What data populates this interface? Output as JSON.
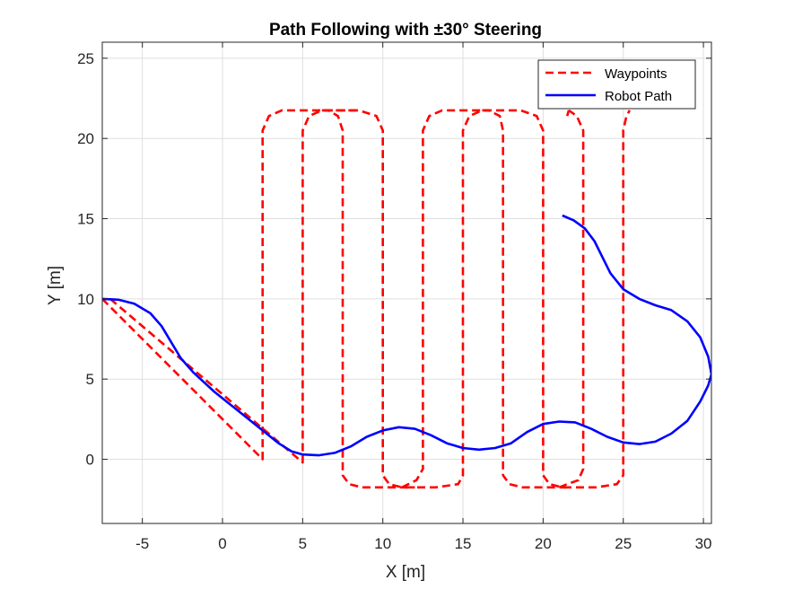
{
  "chart_data": {
    "type": "line",
    "title": "Path Following with ±30° Steering",
    "xlabel": "X [m]",
    "ylabel": "Y [m]",
    "xlim": [
      -7.5,
      30.5
    ],
    "ylim": [
      -4,
      26
    ],
    "xticks": [
      -5,
      0,
      5,
      10,
      15,
      20,
      25,
      30
    ],
    "yticks": [
      0,
      5,
      10,
      15,
      20,
      25
    ],
    "grid": true,
    "legend_position": "top-right",
    "legend": [
      "Waypoints",
      "Robot Path"
    ],
    "series": [
      {
        "name": "Waypoints",
        "color": "#ff0000",
        "style": "dashed",
        "points": [
          [
            -7.5,
            10
          ],
          [
            2.5,
            0
          ],
          [
            2.5,
            20.5
          ],
          [
            2.8,
            21.4
          ],
          [
            3.7,
            21.75
          ],
          [
            4.5,
            21.75
          ],
          [
            5.3,
            21.4
          ],
          [
            5.6,
            20.5
          ],
          [
            5.2,
            20.5
          ],
          [
            5.2,
            20.5
          ],
          [
            5.5,
            21.4
          ],
          [
            6.3,
            21.75
          ],
          [
            7.5,
            21.75
          ],
          [
            7.5,
            21.75
          ],
          [
            5.0,
            21.75
          ],
          [
            5.0,
            21.75
          ],
          [
            6.5,
            21.75
          ],
          [
            7.3,
            21.4
          ],
          [
            7.6,
            20.5
          ],
          [
            7.6,
            20.5
          ],
          [
            7.6,
            -0.8
          ],
          [
            7.9,
            -1.4
          ],
          [
            8.8,
            -1.75
          ],
          [
            9.2,
            -1.75
          ],
          [
            10.0,
            -1.4
          ],
          [
            10.2,
            -0.8
          ],
          [
            10.0,
            -0.5
          ]
        ],
        "segments": [
          [
            [
              -7.5,
              10
            ],
            [
              2.5,
              0
            ],
            [
              2.5,
              20.5
            ],
            [
              2.9,
              21.4
            ],
            [
              3.7,
              21.75
            ],
            [
              8.5,
              21.75
            ],
            [
              9.6,
              21.4
            ],
            [
              10.0,
              20.5
            ],
            [
              10.0,
              -1.0
            ],
            [
              10.4,
              -1.55
            ],
            [
              11.2,
              -1.75
            ],
            [
              13.3,
              -1.75
            ],
            [
              14.7,
              -1.55
            ],
            [
              15.0,
              -1.0
            ],
            [
              15.0,
              20.5
            ],
            [
              15.4,
              21.4
            ],
            [
              16.2,
              21.75
            ],
            [
              18.6,
              21.75
            ],
            [
              19.6,
              21.4
            ],
            [
              20.0,
              20.5
            ],
            [
              20.0,
              -1.0
            ],
            [
              20.4,
              -1.55
            ],
            [
              21.2,
              -1.75
            ],
            [
              23.3,
              -1.75
            ],
            [
              24.6,
              -1.55
            ],
            [
              25.0,
              -1.0
            ],
            [
              25.0,
              20.5
            ],
            [
              25.2,
              21.4
            ],
            [
              25.4,
              21.75
            ]
          ],
          [
            [
              -7.0,
              10
            ],
            [
              5.0,
              -0.2
            ],
            [
              5.0,
              20.5
            ],
            [
              5.4,
              21.4
            ],
            [
              6.2,
              21.75
            ],
            [
              8.5,
              21.75
            ]
          ],
          [
            [
              6.2,
              21.75
            ],
            [
              6.6,
              21.75
            ],
            [
              7.2,
              21.4
            ],
            [
              7.5,
              20.5
            ],
            [
              7.5,
              -1.0
            ],
            [
              7.9,
              -1.55
            ],
            [
              8.7,
              -1.75
            ],
            [
              12.0,
              -1.75
            ]
          ],
          [
            [
              11.2,
              -1.75
            ],
            [
              11.6,
              -1.55
            ],
            [
              12.1,
              -1.3
            ],
            [
              12.5,
              -0.6
            ],
            [
              12.5,
              20.5
            ],
            [
              12.9,
              21.4
            ],
            [
              13.7,
              21.75
            ],
            [
              16.5,
              21.75
            ]
          ],
          [
            [
              16.2,
              21.75
            ],
            [
              16.6,
              21.75
            ],
            [
              17.3,
              21.4
            ],
            [
              17.5,
              20.5
            ],
            [
              17.5,
              -1.0
            ],
            [
              17.9,
              -1.55
            ],
            [
              18.7,
              -1.75
            ],
            [
              21.5,
              -1.75
            ]
          ],
          [
            [
              21.0,
              -1.75
            ],
            [
              21.5,
              -1.55
            ],
            [
              22.2,
              -1.3
            ],
            [
              22.5,
              -0.6
            ],
            [
              22.5,
              20.5
            ],
            [
              22.1,
              21.4
            ],
            [
              21.6,
              21.75
            ]
          ],
          [
            [
              21.6,
              21.75
            ],
            [
              21.5,
              21.4
            ]
          ]
        ]
      },
      {
        "name": "Robot Path",
        "color": "#0000ff",
        "style": "solid",
        "points": [
          [
            -7.5,
            10.0
          ],
          [
            -6.5,
            9.95
          ],
          [
            -5.5,
            9.7
          ],
          [
            -4.5,
            9.1
          ],
          [
            -3.8,
            8.3
          ],
          [
            -3.2,
            7.3
          ],
          [
            -2.6,
            6.3
          ],
          [
            -1.8,
            5.4
          ],
          [
            -0.5,
            4.2
          ],
          [
            1.0,
            3.0
          ],
          [
            2.5,
            1.8
          ],
          [
            3.5,
            1.0
          ],
          [
            4.3,
            0.5
          ],
          [
            5.0,
            0.3
          ],
          [
            6.0,
            0.25
          ],
          [
            7.0,
            0.4
          ],
          [
            8.0,
            0.8
          ],
          [
            9.0,
            1.4
          ],
          [
            10.0,
            1.8
          ],
          [
            11.0,
            2.0
          ],
          [
            12.0,
            1.9
          ],
          [
            13.0,
            1.5
          ],
          [
            14.0,
            1.0
          ],
          [
            15.0,
            0.7
          ],
          [
            16.0,
            0.6
          ],
          [
            17.0,
            0.7
          ],
          [
            18.0,
            1.0
          ],
          [
            19.0,
            1.7
          ],
          [
            20.0,
            2.2
          ],
          [
            21.0,
            2.35
          ],
          [
            22.0,
            2.3
          ],
          [
            23.0,
            1.9
          ],
          [
            24.0,
            1.4
          ],
          [
            25.0,
            1.05
          ],
          [
            26.0,
            0.95
          ],
          [
            27.0,
            1.1
          ],
          [
            28.0,
            1.6
          ],
          [
            29.0,
            2.4
          ],
          [
            29.8,
            3.6
          ],
          [
            30.3,
            4.6
          ],
          [
            30.5,
            5.3
          ],
          [
            30.3,
            6.4
          ],
          [
            29.8,
            7.6
          ],
          [
            29.0,
            8.6
          ],
          [
            28.0,
            9.3
          ],
          [
            27.0,
            9.6
          ],
          [
            26.0,
            10.0
          ],
          [
            25.0,
            10.6
          ],
          [
            24.2,
            11.6
          ],
          [
            23.7,
            12.6
          ],
          [
            23.2,
            13.6
          ],
          [
            22.6,
            14.4
          ],
          [
            21.9,
            14.9
          ],
          [
            21.2,
            15.2
          ]
        ]
      }
    ]
  }
}
